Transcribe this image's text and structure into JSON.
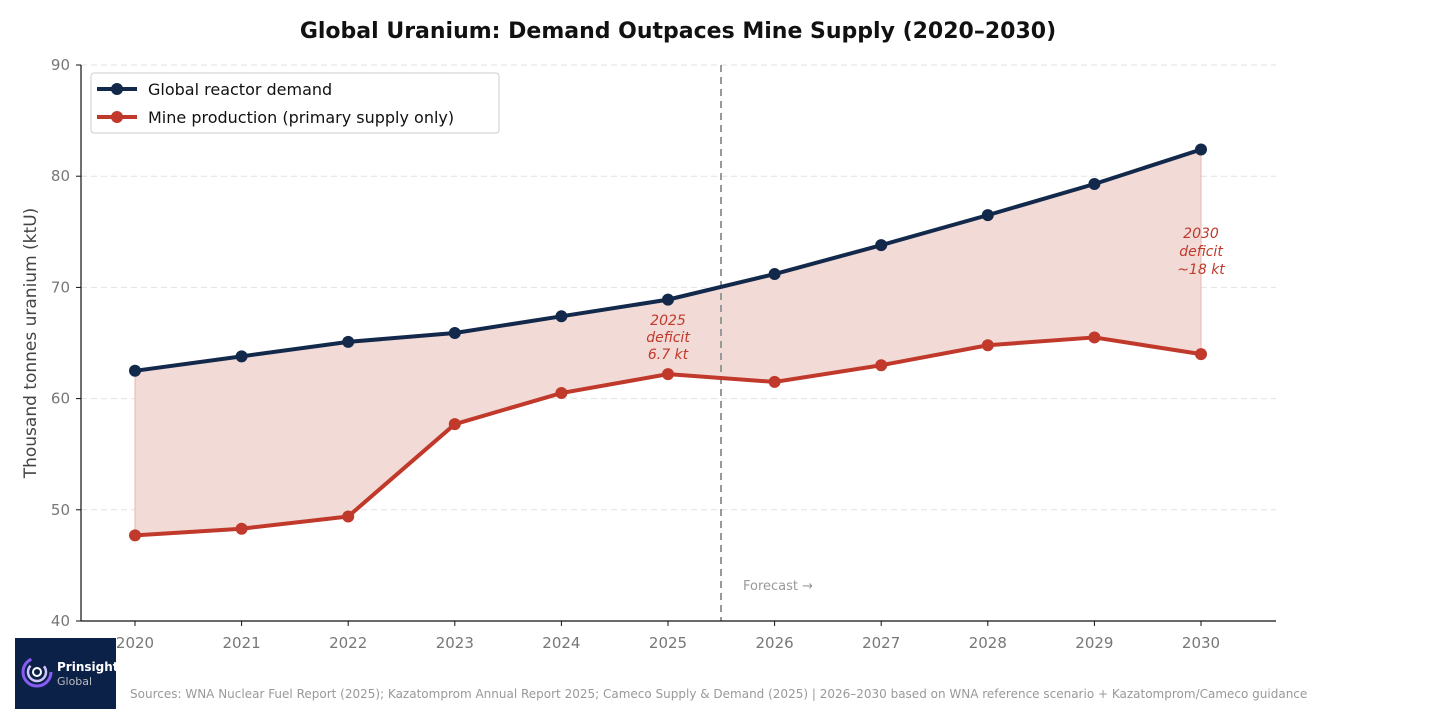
{
  "chart_data": {
    "type": "line",
    "title": "Global Uranium: Demand Outpaces Mine Supply (2020–2030)",
    "xlabel": "",
    "ylabel": "Thousand tonnes uranium (ktU)",
    "x": [
      2020,
      2021,
      2022,
      2023,
      2024,
      2025,
      2026,
      2027,
      2028,
      2029,
      2030
    ],
    "ylim": [
      40,
      90
    ],
    "yticks": [
      40,
      50,
      60,
      70,
      80,
      90
    ],
    "grid": "horizontal dashed",
    "legend_position": "top-left",
    "series": [
      {
        "name": "Global reactor demand",
        "color": "#13294b",
        "values": [
          62.5,
          63.8,
          65.1,
          65.9,
          67.4,
          68.9,
          71.2,
          73.8,
          76.5,
          79.3,
          82.4
        ]
      },
      {
        "name": "Mine production (primary supply only)",
        "color": "#c0392b",
        "values": [
          47.7,
          48.3,
          49.4,
          57.7,
          60.5,
          62.2,
          61.5,
          63.0,
          64.8,
          65.5,
          64.0
        ]
      }
    ],
    "fill_color": "#f2dad6",
    "forecast_line_x": 2025.5,
    "annotations": [
      {
        "lines": [
          "2025",
          "deficit",
          "6.7 kt"
        ],
        "x": 2025
      },
      {
        "lines": [
          "2030",
          "deficit",
          "~18 kt"
        ],
        "x": 2030
      },
      {
        "text": "Forecast →"
      }
    ]
  },
  "logo": {
    "name": "Prinsights",
    "sub": "Global"
  },
  "source": "Sources: WNA Nuclear Fuel Report (2025); Kazatomprom Annual Report 2025; Cameco Supply & Demand (2025)  |  2026–2030 based on WNA reference scenario + Kazatomprom/Cameco guidance"
}
